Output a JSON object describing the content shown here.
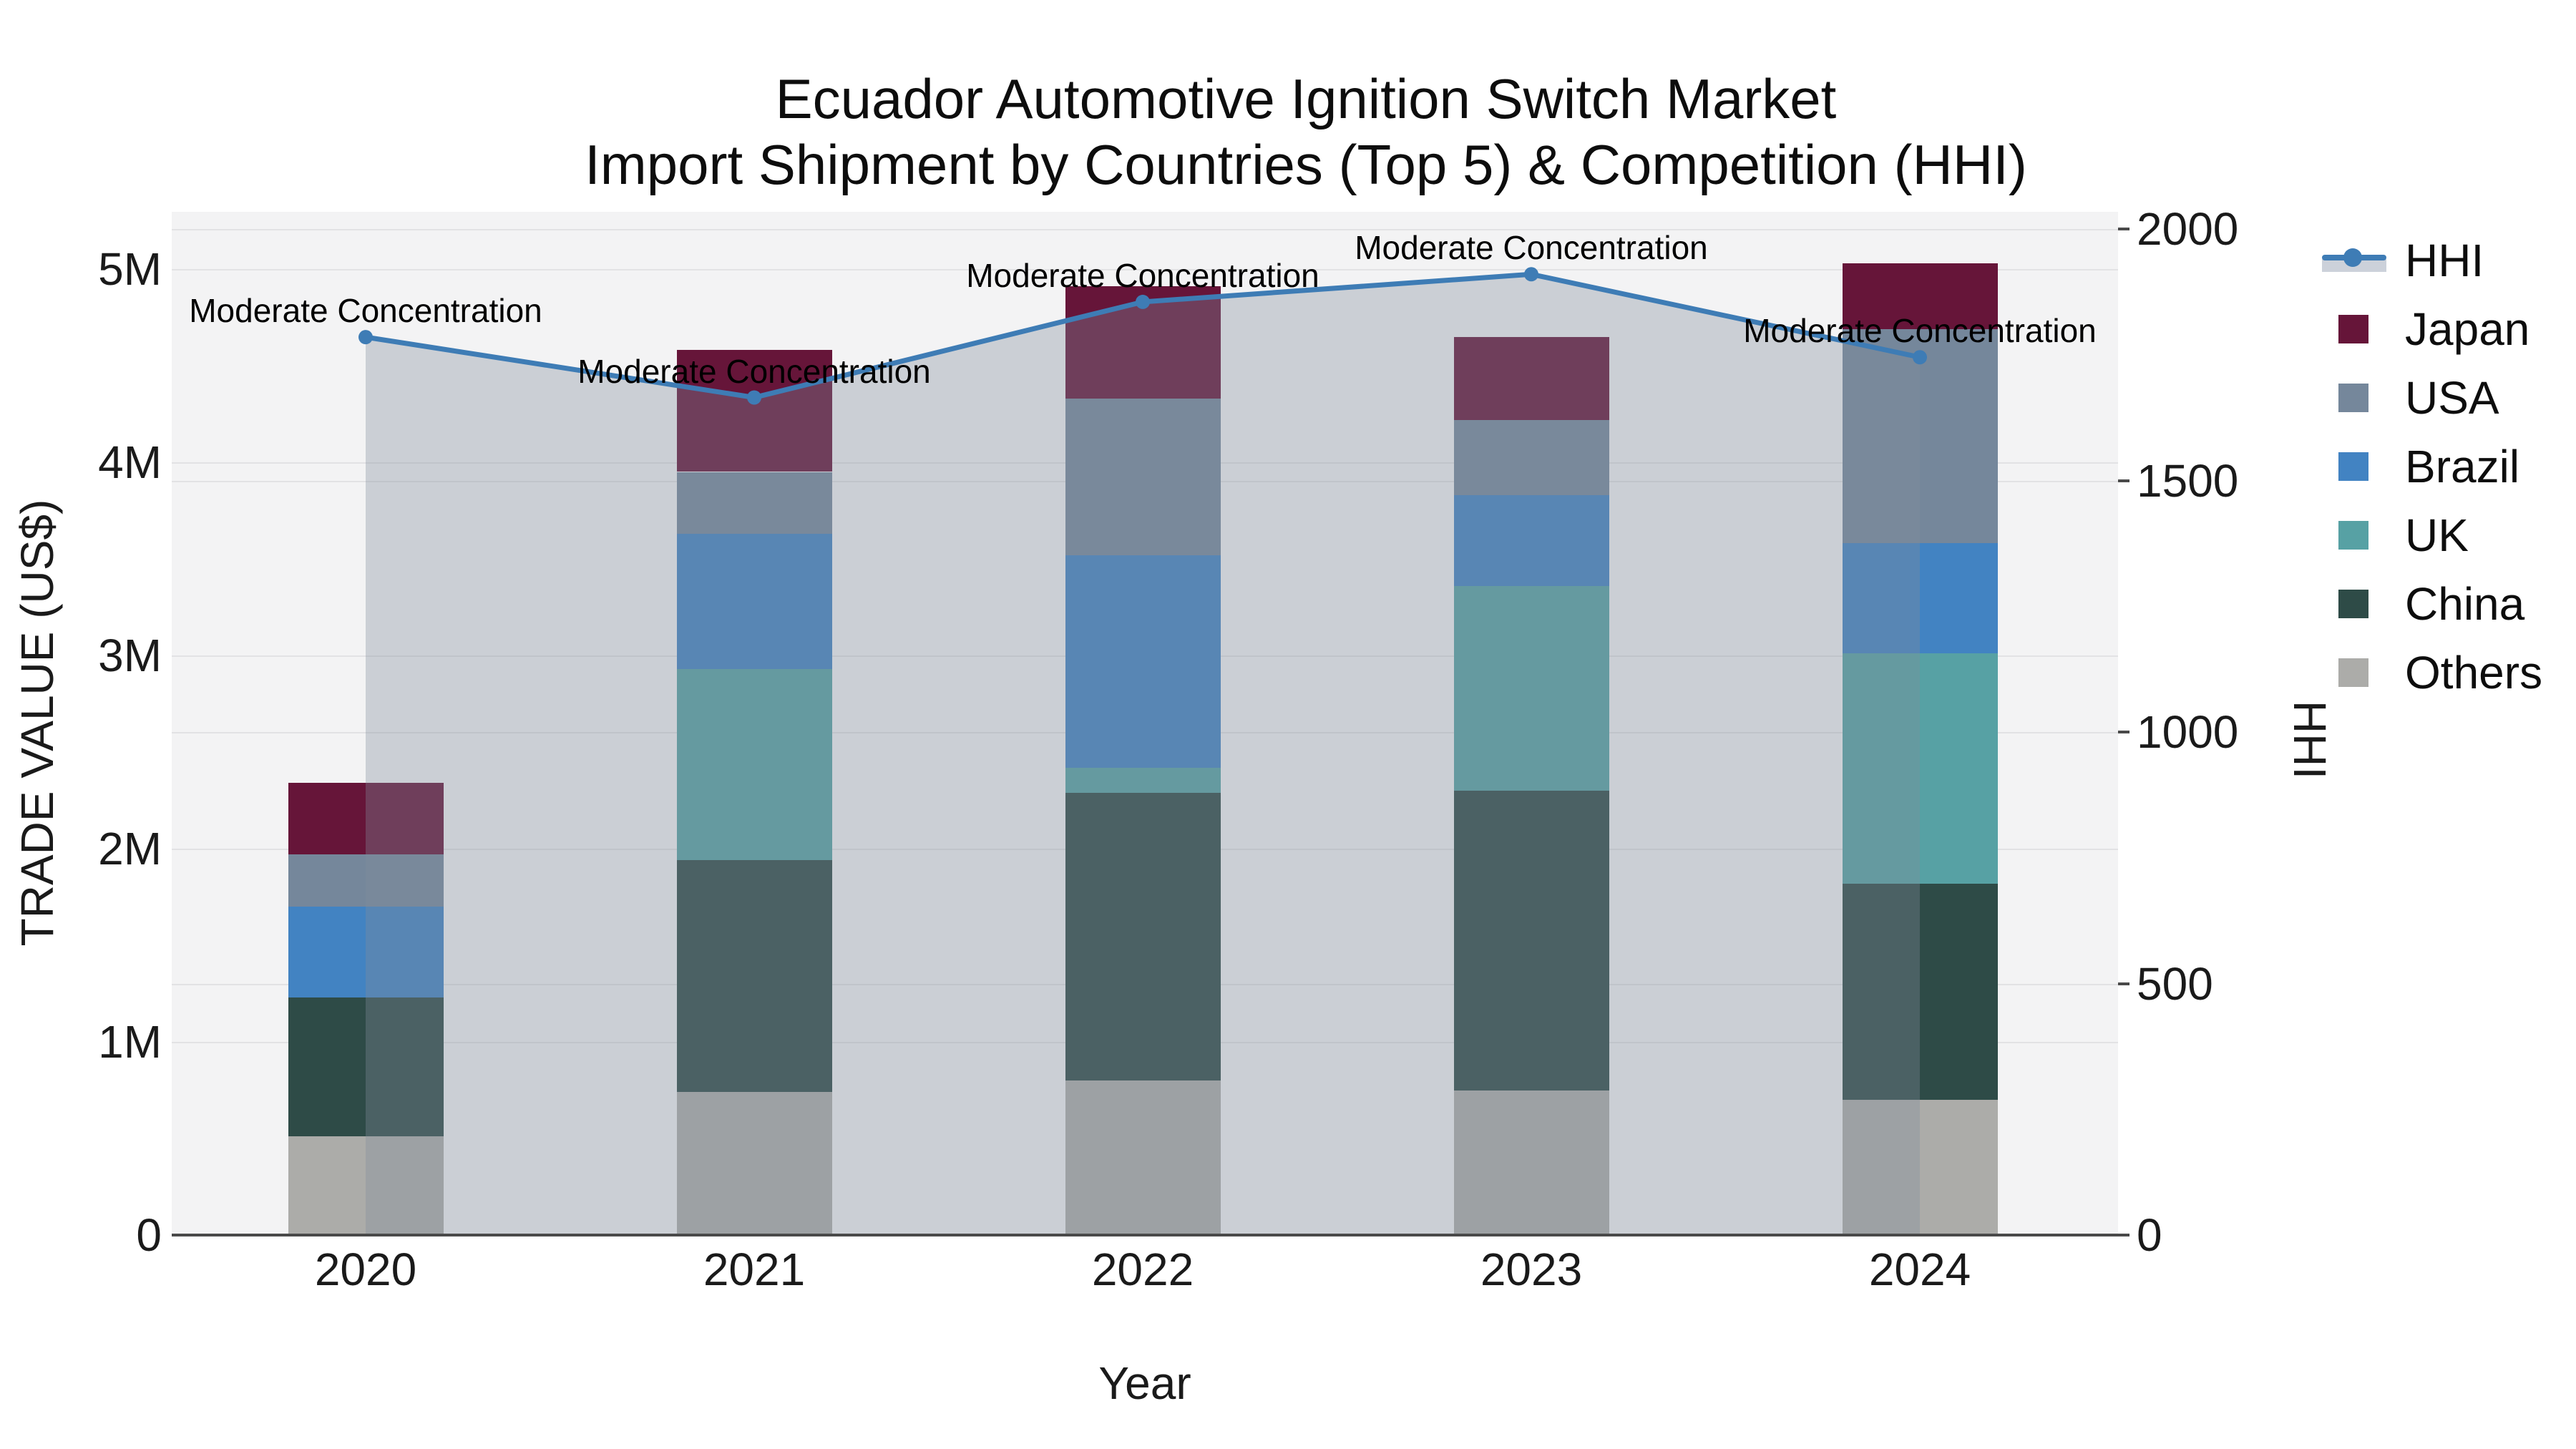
{
  "title": {
    "line1": "Ecuador Automotive Ignition Switch Market",
    "line2": "Import Shipment by Countries (Top 5) & Competition (HHI)"
  },
  "x_axis": {
    "title": "Year",
    "categories": [
      "2020",
      "2021",
      "2022",
      "2023",
      "2024"
    ]
  },
  "left_axis": {
    "title": "TRADE VALUE (US$)",
    "tick_labels": [
      "0",
      "1M",
      "2M",
      "3M",
      "4M",
      "5M"
    ],
    "tick_values_m": [
      0,
      1,
      2,
      3,
      4,
      5
    ]
  },
  "right_axis": {
    "title": "HHI",
    "tick_labels": [
      "0",
      "500",
      "1000",
      "1500",
      "2000"
    ],
    "tick_values": [
      0,
      500,
      1000,
      1500,
      2000
    ]
  },
  "legend": {
    "items": [
      {
        "label": "HHI",
        "type": "line",
        "color": "#3e7cb5"
      },
      {
        "label": "Japan",
        "type": "swatch",
        "color": "#661539"
      },
      {
        "label": "USA",
        "type": "swatch",
        "color": "#75879b"
      },
      {
        "label": "Brazil",
        "type": "swatch",
        "color": "#4283c2"
      },
      {
        "label": "UK",
        "type": "swatch",
        "color": "#57a1a4"
      },
      {
        "label": "China",
        "type": "swatch",
        "color": "#2e4b47"
      },
      {
        "label": "Others",
        "type": "swatch",
        "color": "#acaca9"
      }
    ]
  },
  "chart_data": {
    "type": "bar",
    "subtype": "stacked-bars-with-line-overlay",
    "categories": [
      "2020",
      "2021",
      "2022",
      "2023",
      "2024"
    ],
    "stack_order_bottom_to_top": [
      "Others",
      "China",
      "UK",
      "Brazil",
      "USA",
      "Japan"
    ],
    "value_unit": "million US$",
    "series": [
      {
        "name": "Japan",
        "color": "#661539",
        "values": [
          0.37,
          0.63,
          0.58,
          0.43,
          0.34
        ]
      },
      {
        "name": "USA",
        "color": "#75879b",
        "values": [
          0.27,
          0.32,
          0.81,
          0.39,
          1.11
        ]
      },
      {
        "name": "Brazil",
        "color": "#4283c2",
        "values": [
          0.47,
          0.7,
          1.1,
          0.47,
          0.57
        ]
      },
      {
        "name": "UK",
        "color": "#57a1a4",
        "values": [
          0.0,
          0.99,
          0.13,
          1.06,
          1.19
        ]
      },
      {
        "name": "China",
        "color": "#2e4b47",
        "values": [
          0.72,
          1.2,
          1.49,
          1.55,
          1.12
        ]
      },
      {
        "name": "Others",
        "color": "#acaca9",
        "values": [
          0.51,
          0.74,
          0.8,
          0.75,
          0.7
        ]
      }
    ],
    "bar_totals_m": [
      2.34,
      4.58,
      4.91,
      4.65,
      5.03
    ],
    "line_series": {
      "name": "HHI",
      "axis": "right",
      "color": "#3e7cb5",
      "area_fill": "rgba(130,140,155,0.35)",
      "values": [
        1785,
        1665,
        1855,
        1910,
        1745
      ]
    },
    "annotations": [
      {
        "text": "Moderate Concentration",
        "category": "2020"
      },
      {
        "text": "Moderate Concentration",
        "category": "2021"
      },
      {
        "text": "Moderate Concentration",
        "category": "2022"
      },
      {
        "text": "Moderate Concentration",
        "category": "2023"
      },
      {
        "text": "Moderate Concentration",
        "category": "2024"
      }
    ],
    "title": "Ecuador Automotive Ignition Switch Market Import Shipment by Countries (Top 5) & Competition (HHI)",
    "xlabel": "Year",
    "ylabel_left": "TRADE VALUE (US$)",
    "ylabel_right": "HHI",
    "ylim_left_m": [
      0,
      5.3
    ],
    "ylim_right": [
      0,
      2040
    ],
    "grid": true,
    "legend_position": "right"
  }
}
